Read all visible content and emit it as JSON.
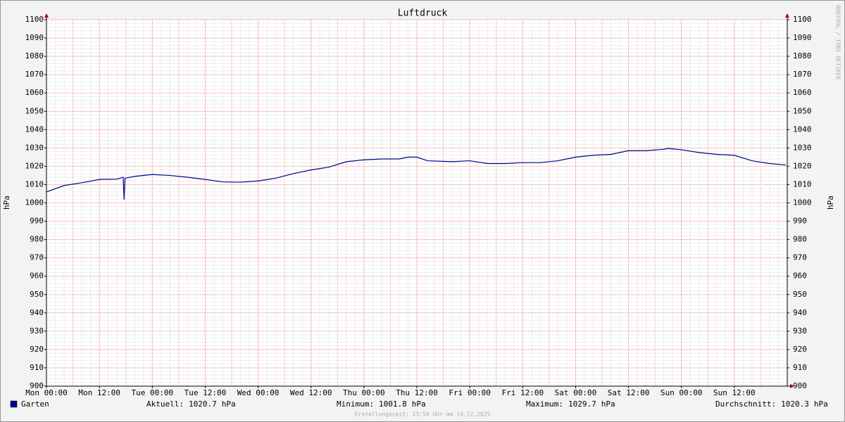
{
  "chart_data": {
    "type": "line",
    "title": "Luftdruck",
    "ylabel": "hPa",
    "y2label": "hPa",
    "x": [
      0,
      4,
      8,
      12,
      16,
      17.4,
      17.6,
      17.8,
      20,
      24,
      28,
      32,
      36,
      40,
      44,
      48,
      52,
      56,
      60,
      64,
      68,
      72,
      76,
      80,
      82,
      84,
      86.4,
      92,
      96,
      100,
      104,
      108,
      112,
      116,
      120,
      124,
      128,
      132,
      136,
      140,
      141,
      144,
      148,
      152,
      156,
      160,
      164,
      167.7
    ],
    "series": [
      {
        "name": "Garten",
        "color": "#00008b",
        "values": [
          1006,
          1009.5,
          1011,
          1012.8,
          1013,
          1014,
          1001.8,
          1013.5,
          1014.5,
          1015.5,
          1015,
          1014,
          1012.8,
          1011.5,
          1011.3,
          1012,
          1013.5,
          1016,
          1018,
          1019.5,
          1022.5,
          1023.5,
          1024,
          1024,
          1025,
          1025,
          1023,
          1022.5,
          1023,
          1021.5,
          1021.5,
          1022,
          1022,
          1023,
          1025,
          1026,
          1026.5,
          1028.5,
          1028.5,
          1029.3,
          1029.7,
          1029,
          1027.5,
          1026.5,
          1026,
          1023,
          1021.5,
          1020.7
        ]
      }
    ],
    "xlim": [
      0,
      168
    ],
    "xticks": [
      {
        "value": 0,
        "label": "Mon 00:00"
      },
      {
        "value": 12,
        "label": "Mon 12:00"
      },
      {
        "value": 24,
        "label": "Tue 00:00"
      },
      {
        "value": 36,
        "label": "Tue 12:00"
      },
      {
        "value": 48,
        "label": "Wed 00:00"
      },
      {
        "value": 60,
        "label": "Wed 12:00"
      },
      {
        "value": 72,
        "label": "Thu 00:00"
      },
      {
        "value": 84,
        "label": "Thu 12:00"
      },
      {
        "value": 96,
        "label": "Fri 00:00"
      },
      {
        "value": 108,
        "label": "Fri 12:00"
      },
      {
        "value": 120,
        "label": "Sat 00:00"
      },
      {
        "value": 132,
        "label": "Sat 12:00"
      },
      {
        "value": 144,
        "label": "Sun 00:00"
      },
      {
        "value": 156,
        "label": "Sun 12:00"
      }
    ],
    "ylim": [
      900,
      1100
    ],
    "yticks": [
      900,
      910,
      920,
      930,
      940,
      950,
      960,
      970,
      980,
      990,
      1000,
      1010,
      1020,
      1030,
      1040,
      1050,
      1060,
      1070,
      1080,
      1090,
      1100
    ],
    "grid": true,
    "stats": [
      {
        "label": "Aktuell:",
        "value": 1020.7,
        "unit": "hPa"
      },
      {
        "label": "Minimum:",
        "value": 1001.8,
        "unit": "hPa"
      },
      {
        "label": "Maximum:",
        "value": 1029.7,
        "unit": "hPa"
      },
      {
        "label": "Durchschnitt:",
        "value": 1020.3,
        "unit": "hPa"
      }
    ],
    "footer": "Erstellungszeit: 23:58 Uhr am 14.12.2025",
    "watermark": "RRDTOOL / TOBI OETIKER"
  }
}
